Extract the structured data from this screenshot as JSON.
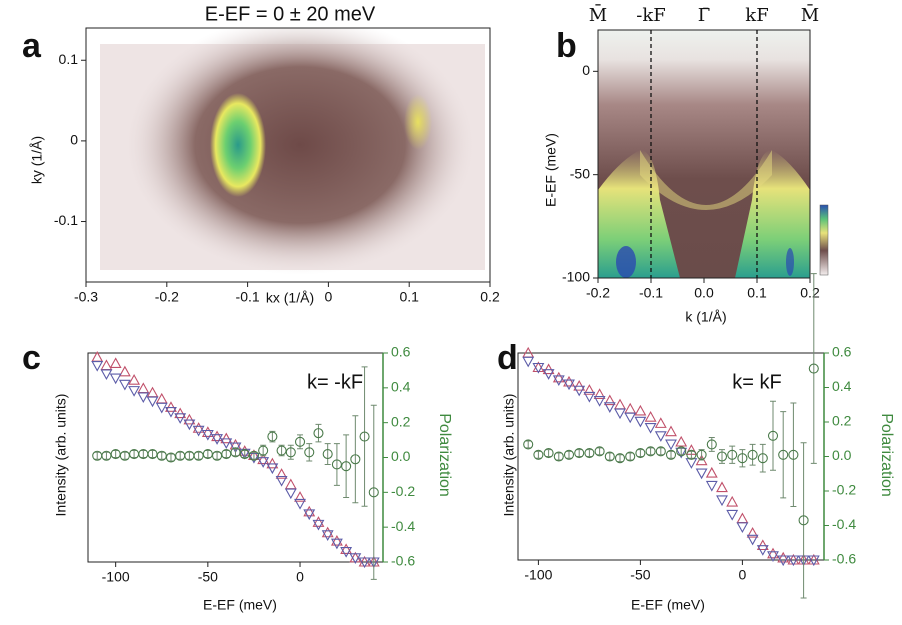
{
  "chart_data": [
    {
      "type": "heatmap",
      "panel_label": "a",
      "title": "E-EF = 0 ± 20 meV",
      "xlabel": "kx (1/Å)",
      "ylabel": "ky (1/Å)",
      "xlim": [
        -0.3,
        0.2
      ],
      "ylim": [
        -0.175,
        0.14
      ],
      "xticks": [
        -0.3,
        -0.2,
        -0.1,
        0,
        0.1,
        0.2
      ],
      "yticks": [
        -0.1,
        0,
        0.1
      ]
    },
    {
      "type": "heatmap",
      "panel_label": "b",
      "xlabel": "k (1/Å)",
      "ylabel": "E-EF (meV)",
      "xlim": [
        -0.2,
        0.2
      ],
      "ylim": [
        -100,
        20
      ],
      "xticks": [
        -0.2,
        -0.1,
        {
          "value": 0,
          "label": "0.0"
        },
        0.1,
        0.2
      ],
      "yticks": [
        -100,
        -50,
        0
      ],
      "top_ticks": [
        {
          "value": -0.2,
          "label": "M̄"
        },
        {
          "value": -0.1,
          "label": "-kF"
        },
        {
          "value": 0,
          "label": "Γ̄"
        },
        {
          "value": 0.1,
          "label": "kF"
        },
        {
          "value": 0.2,
          "label": "M̄"
        }
      ],
      "vlines": [
        -0.1,
        0.1
      ]
    },
    {
      "type": "scatter",
      "panel_label": "c",
      "xlabel": "E-EF  (meV)",
      "ylabel": "Intensity (arb. units)",
      "y2label": "Polarization",
      "annotation": "k= -kF",
      "xlim": [
        -115,
        45
      ],
      "ylim": [
        0,
        1
      ],
      "y2lim": [
        -0.6,
        0.6
      ],
      "xticks": [
        -100,
        -50,
        0
      ],
      "y2ticks": [
        0.6,
        0.4,
        0.2,
        {
          "value": 0,
          "label": "0.0"
        },
        -0.2,
        -0.4,
        -0.6
      ],
      "series": [
        {
          "marker": "triangle-up",
          "color": "#c0506a",
          "x": [
            -110,
            -105,
            -100,
            -95,
            -90,
            -85,
            -80,
            -75,
            -70,
            -65,
            -60,
            -55,
            -50,
            -45,
            -40,
            -35,
            -30,
            -25,
            -20,
            -15,
            -10,
            -5,
            0,
            5,
            10,
            15,
            20,
            25,
            30,
            35,
            40
          ],
          "values": [
            0.98,
            0.94,
            0.95,
            0.91,
            0.87,
            0.83,
            0.81,
            0.78,
            0.74,
            0.71,
            0.68,
            0.64,
            0.62,
            0.6,
            0.59,
            0.56,
            0.53,
            0.51,
            0.49,
            0.47,
            0.42,
            0.37,
            0.31,
            0.24,
            0.19,
            0.14,
            0.1,
            0.06,
            0.02,
            0,
            0
          ]
        },
        {
          "marker": "triangle-down",
          "color": "#5c5ca8",
          "x": [
            -110,
            -105,
            -100,
            -95,
            -90,
            -85,
            -80,
            -75,
            -70,
            -65,
            -60,
            -55,
            -50,
            -45,
            -40,
            -35,
            -30,
            -25,
            -20,
            -15,
            -10,
            -5,
            0,
            5,
            10,
            15,
            20,
            25,
            30,
            35,
            40
          ],
          "values": [
            0.94,
            0.9,
            0.88,
            0.85,
            0.82,
            0.79,
            0.77,
            0.74,
            0.72,
            0.69,
            0.66,
            0.63,
            0.61,
            0.59,
            0.57,
            0.55,
            0.52,
            0.5,
            0.48,
            0.45,
            0.39,
            0.33,
            0.28,
            0.23,
            0.18,
            0.13,
            0.09,
            0.05,
            0.02,
            0,
            0
          ]
        },
        {
          "marker": "circle",
          "color": "#4a7a4a",
          "axis": "y2",
          "x": [
            -110,
            -105,
            -100,
            -95,
            -90,
            -85,
            -80,
            -75,
            -70,
            -65,
            -60,
            -55,
            -50,
            -45,
            -40,
            -35,
            -30,
            -25,
            -20,
            -15,
            -10,
            -5,
            0,
            5,
            10,
            15,
            20,
            25,
            30,
            35,
            40
          ],
          "values": [
            0.01,
            0.01,
            0.02,
            0.01,
            0.02,
            0.02,
            0.02,
            0.01,
            0,
            0.01,
            0.01,
            0.01,
            0.02,
            0.01,
            0.02,
            0.03,
            0.02,
            0.01,
            0.04,
            0.12,
            0.04,
            0.03,
            0.09,
            0.03,
            0.14,
            0.02,
            -0.04,
            -0.05,
            -0.01,
            0.12,
            -0.2
          ],
          "errors": [
            0.02,
            0.02,
            0.02,
            0.02,
            0.02,
            0.02,
            0.02,
            0.02,
            0.02,
            0.02,
            0.02,
            0.02,
            0.02,
            0.02,
            0.02,
            0.02,
            0.02,
            0.02,
            0.03,
            0.03,
            0.03,
            0.04,
            0.04,
            0.05,
            0.05,
            0.06,
            0.12,
            0.18,
            0.25,
            0.4,
            0.5
          ]
        }
      ]
    },
    {
      "type": "scatter",
      "panel_label": "d",
      "xlabel": "E-EF  (meV)",
      "ylabel": "Intensity (arb. units)",
      "y2label": "Polarization",
      "annotation": "k= kF",
      "xlim": [
        -110,
        40
      ],
      "ylim": [
        0,
        1
      ],
      "y2lim": [
        -0.6,
        0.6
      ],
      "xticks": [
        -100,
        -50,
        0
      ],
      "y2ticks": [
        0.6,
        0.4,
        0.2,
        {
          "value": 0,
          "label": "0.0"
        },
        -0.2,
        -0.4,
        -0.6
      ],
      "series": [
        {
          "marker": "triangle-up",
          "color": "#c0506a",
          "x": [
            -105,
            -100,
            -95,
            -90,
            -85,
            -80,
            -75,
            -70,
            -65,
            -60,
            -55,
            -50,
            -45,
            -40,
            -35,
            -30,
            -25,
            -20,
            -15,
            -10,
            -5,
            0,
            5,
            10,
            15,
            20,
            25,
            30,
            35
          ],
          "values": [
            1.0,
            0.93,
            0.92,
            0.88,
            0.86,
            0.84,
            0.82,
            0.8,
            0.77,
            0.75,
            0.73,
            0.72,
            0.69,
            0.66,
            0.62,
            0.57,
            0.53,
            0.48,
            0.42,
            0.35,
            0.28,
            0.2,
            0.13,
            0.07,
            0.03,
            0.01,
            0,
            0,
            0
          ]
        },
        {
          "marker": "triangle-down",
          "color": "#5c5ca8",
          "x": [
            -105,
            -100,
            -95,
            -90,
            -85,
            -80,
            -75,
            -70,
            -65,
            -60,
            -55,
            -50,
            -45,
            -40,
            -35,
            -30,
            -25,
            -20,
            -15,
            -10,
            -5,
            0,
            5,
            10,
            15,
            20,
            25,
            30,
            35
          ],
          "values": [
            0.96,
            0.93,
            0.9,
            0.87,
            0.85,
            0.82,
            0.79,
            0.77,
            0.74,
            0.71,
            0.69,
            0.67,
            0.64,
            0.6,
            0.56,
            0.52,
            0.47,
            0.42,
            0.36,
            0.29,
            0.22,
            0.16,
            0.1,
            0.05,
            0.02,
            0,
            0,
            0,
            0
          ]
        },
        {
          "marker": "circle",
          "color": "#4a7a4a",
          "axis": "y2",
          "x": [
            -105,
            -100,
            -95,
            -90,
            -85,
            -80,
            -75,
            -70,
            -65,
            -60,
            -55,
            -50,
            -45,
            -40,
            -35,
            -30,
            -25,
            -20,
            -15,
            -10,
            -5,
            0,
            5,
            10,
            15,
            20,
            25,
            30,
            35
          ],
          "values": [
            0.07,
            0.01,
            0.02,
            0,
            0.01,
            0.02,
            0.02,
            0.03,
            0,
            -0.01,
            0,
            0.02,
            0.03,
            0.03,
            0.01,
            0.03,
            0.01,
            0.01,
            0.07,
            0,
            0.01,
            -0.01,
            0.01,
            -0.01,
            0.12,
            0.01,
            0.01,
            -0.37,
            0.51
          ],
          "errors": [
            0.02,
            0.02,
            0.02,
            0.02,
            0.02,
            0.02,
            0.02,
            0.02,
            0.02,
            0.02,
            0.02,
            0.02,
            0.02,
            0.02,
            0.02,
            0.02,
            0.02,
            0.03,
            0.04,
            0.04,
            0.05,
            0.05,
            0.06,
            0.08,
            0.2,
            0.25,
            0.3,
            0.45,
            0.55
          ]
        }
      ]
    }
  ]
}
